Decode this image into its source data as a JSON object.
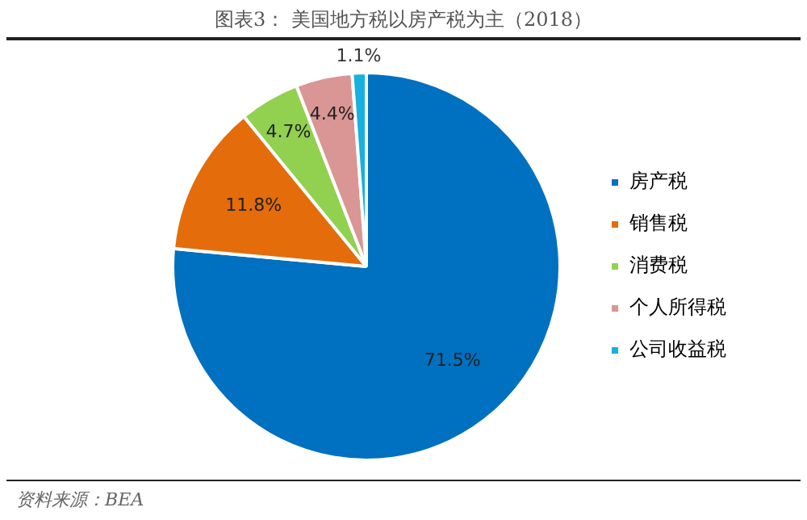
{
  "chart_data": {
    "type": "pie",
    "title": "图表3：  美国地方税以房产税为主（2018）",
    "categories": [
      "房产税",
      "销售税",
      "消费税",
      "个人所得税",
      "公司收益税"
    ],
    "values": [
      71.5,
      11.8,
      4.7,
      4.4,
      1.1
    ],
    "colors": [
      "#0070c0",
      "#e46c0a",
      "#92d050",
      "#d99694",
      "#17b0e0"
    ],
    "value_labels": [
      "71.5%",
      "11.8%",
      "4.7%",
      "4.4%",
      "1.1%"
    ],
    "legend": "right",
    "annotations": [
      "资料来源：BEA"
    ]
  }
}
